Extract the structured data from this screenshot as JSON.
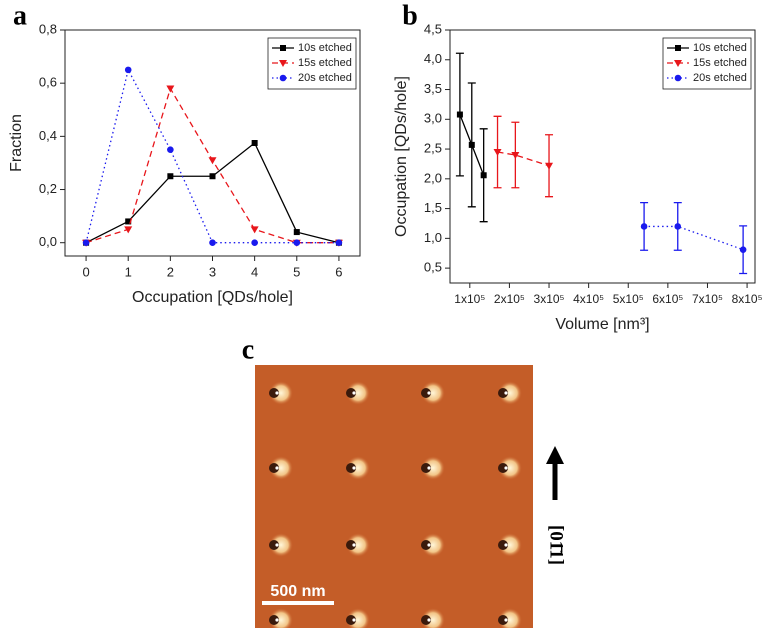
{
  "chart_data": [
    {
      "type": "line",
      "panel_label": "a",
      "xlabel": "Occupation [QDs/hole]",
      "ylabel": "Fraction",
      "x": [
        0,
        1,
        2,
        3,
        4,
        5,
        6
      ],
      "series": [
        {
          "name": "10s etched",
          "color": "#000000",
          "dash": "solid",
          "marker": "square",
          "values": [
            0,
            0.08,
            0.25,
            0.25,
            0.375,
            0.04,
            0
          ]
        },
        {
          "name": "15s etched",
          "color": "#e8161b",
          "dash": "dashed",
          "marker": "triangle-down",
          "values": [
            0,
            0.05,
            0.58,
            0.31,
            0.05,
            0,
            0
          ]
        },
        {
          "name": "20s etched",
          "color": "#1a1aee",
          "dash": "dotted",
          "marker": "circle",
          "values": [
            0,
            0.65,
            0.35,
            0,
            0,
            0,
            0
          ]
        }
      ],
      "xlim": [
        -0.5,
        6.5
      ],
      "xticks": [
        0,
        1,
        2,
        3,
        4,
        5,
        6
      ],
      "ylim": [
        -0.05,
        0.8
      ],
      "yticks": [
        {
          "value": 0,
          "label": "0,0"
        },
        {
          "value": 0.2,
          "label": "0,2"
        },
        {
          "value": 0.4,
          "label": "0,4"
        },
        {
          "value": 0.6,
          "label": "0,6"
        },
        {
          "value": 0.8,
          "label": "0,8"
        }
      ],
      "legend": "upper right"
    },
    {
      "type": "errorbar",
      "panel_label": "b",
      "xlabel": "Volume [nm³]",
      "ylabel": "Occupation [QDs/hole]",
      "series": [
        {
          "name": "10s etched",
          "color": "#000000",
          "dash": "solid",
          "marker": "square",
          "x": [
            75000,
            105000,
            135000
          ],
          "values": [
            3.08,
            2.57,
            2.06
          ],
          "errors": [
            1.03,
            1.04,
            0.78
          ]
        },
        {
          "name": "15s etched",
          "color": "#e8161b",
          "dash": "dashed",
          "marker": "triangle-down",
          "x": [
            170000,
            215000,
            300000
          ],
          "values": [
            2.45,
            2.4,
            2.22
          ],
          "errors": [
            0.6,
            0.55,
            0.52
          ]
        },
        {
          "name": "20s etched",
          "color": "#1a1aee",
          "dash": "dotted",
          "marker": "circle",
          "x": [
            540000,
            625000,
            790000
          ],
          "values": [
            1.2,
            1.2,
            0.81
          ],
          "errors": [
            0.4,
            0.4,
            0.4
          ]
        }
      ],
      "xlim": [
        50000,
        820000
      ],
      "xticks": [
        {
          "value": 100000,
          "label": "1x10⁵"
        },
        {
          "value": 200000,
          "label": "2x10⁵"
        },
        {
          "value": 300000,
          "label": "3x10⁵"
        },
        {
          "value": 400000,
          "label": "4x10⁵"
        },
        {
          "value": 500000,
          "label": "5x10⁵"
        },
        {
          "value": 600000,
          "label": "6x10⁵"
        },
        {
          "value": 700000,
          "label": "7x10⁵"
        },
        {
          "value": 800000,
          "label": "8x10⁵"
        }
      ],
      "ylim": [
        0.25,
        4.5
      ],
      "yticks": [
        {
          "value": 0.5,
          "label": "0,5"
        },
        {
          "value": 1,
          "label": "1,0"
        },
        {
          "value": 1.5,
          "label": "1,5"
        },
        {
          "value": 2,
          "label": "2,0"
        },
        {
          "value": 2.5,
          "label": "2,5"
        },
        {
          "value": 3,
          "label": "3,0"
        },
        {
          "value": 3.5,
          "label": "3,5"
        },
        {
          "value": 4,
          "label": "4,0"
        },
        {
          "value": 4.5,
          "label": "4,5"
        }
      ],
      "legend": "upper right"
    }
  ],
  "image_panel": {
    "panel_label": "c",
    "scale_bar": "500 nm",
    "direction": "[01̄1]"
  }
}
